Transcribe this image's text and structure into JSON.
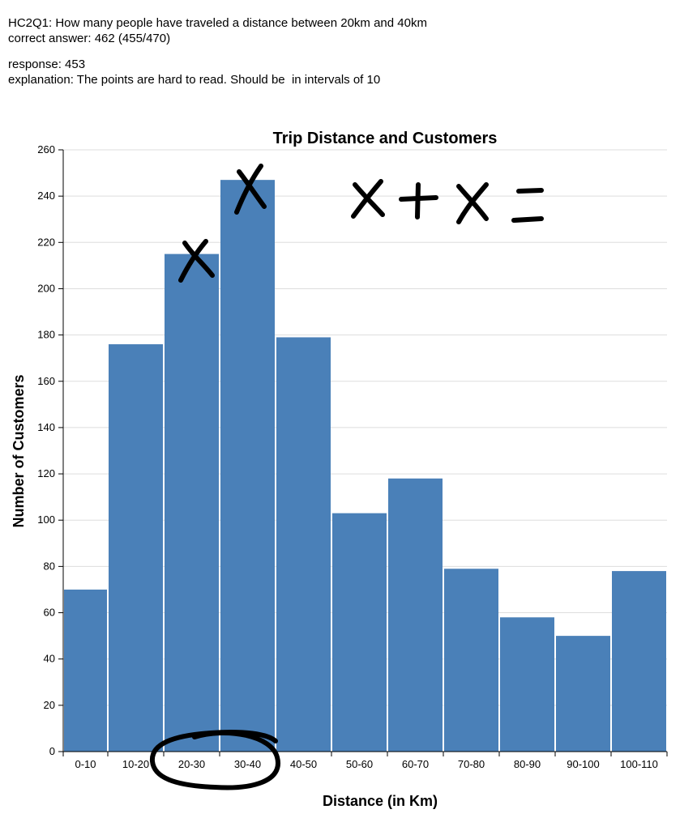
{
  "notes": {
    "question": "HC2Q1: How many people have traveled a distance between 20km and 40km",
    "correct_answer": "correct answer: 462 (455/470)",
    "response": "response: 453",
    "explanation": "explanation: The points are hard to read. Should be  in intervals of 10"
  },
  "chart_data": {
    "type": "bar",
    "title": "Trip Distance and Customers",
    "xlabel": "Distance (in Km)",
    "ylabel": "Number of Customers",
    "categories": [
      "0-10",
      "10-20",
      "20-30",
      "30-40",
      "40-50",
      "50-60",
      "60-70",
      "70-80",
      "80-90",
      "90-100",
      "100-110"
    ],
    "values": [
      70,
      176,
      215,
      247,
      179,
      103,
      118,
      79,
      58,
      50,
      78
    ],
    "ylim": [
      0,
      260
    ],
    "yticks": [
      0,
      20,
      40,
      60,
      80,
      100,
      120,
      140,
      160,
      180,
      200,
      220,
      240,
      260
    ],
    "grid": true,
    "bar_color": "#4a80b8",
    "grid_color": "#dddddd",
    "annotations": {
      "handwritten_marks": "X marks on 20-30 and 30-40 bars, circle around 20-30 and 30-40 labels",
      "handwritten_formula": "X+X="
    }
  }
}
